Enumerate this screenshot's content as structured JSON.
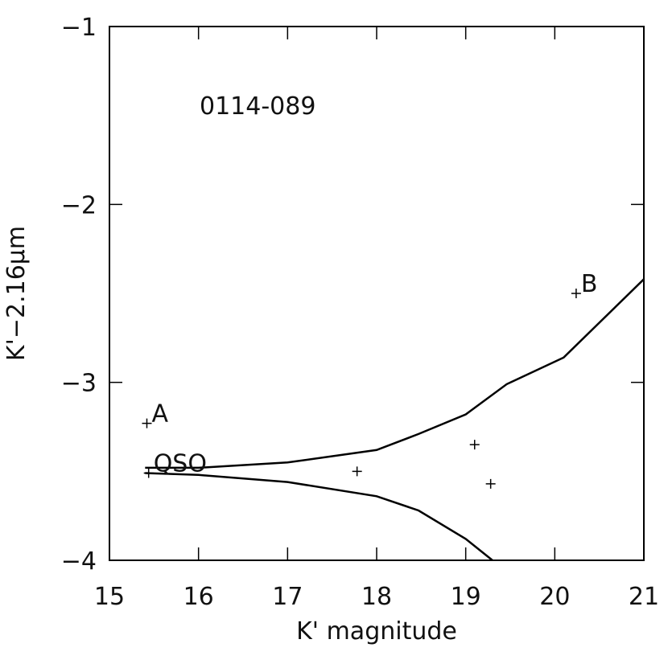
{
  "chart_data": {
    "type": "scatter",
    "annotation": "0114-089",
    "x_label": "K' magnitude",
    "y_label": "K'−2.16μm",
    "xlim": [
      15,
      21
    ],
    "ylim": [
      -4,
      -1
    ],
    "xticks": [
      15,
      16,
      17,
      18,
      19,
      20,
      21
    ],
    "yticks": [
      {
        "value": -4,
        "label": "−4"
      },
      {
        "value": -3,
        "label": "−3"
      },
      {
        "value": -2,
        "label": "−2"
      },
      {
        "value": -1,
        "label": "−1"
      }
    ],
    "color": "#000000",
    "points": {
      "x": [
        15.42,
        15.44,
        17.78,
        19.1,
        19.28,
        20.24
      ],
      "y": [
        -3.23,
        -3.51,
        -3.5,
        -3.35,
        -3.57,
        -2.5
      ],
      "labels": [
        "A",
        "QSO",
        null,
        null,
        null,
        "B"
      ]
    },
    "curves": [
      {
        "x": [
          15.4,
          16,
          17,
          18,
          18.47,
          19,
          19.46,
          20.1,
          21
        ],
        "y": [
          -3.48,
          -3.48,
          -3.45,
          -3.38,
          -3.29,
          -3.18,
          -3.01,
          -2.86,
          -2.42
        ]
      },
      {
        "x": [
          15.4,
          16,
          17,
          18,
          18.47,
          19,
          19.3
        ],
        "y": [
          -3.51,
          -3.52,
          -3.56,
          -3.64,
          -3.72,
          -3.88,
          -4.0
        ]
      }
    ]
  }
}
